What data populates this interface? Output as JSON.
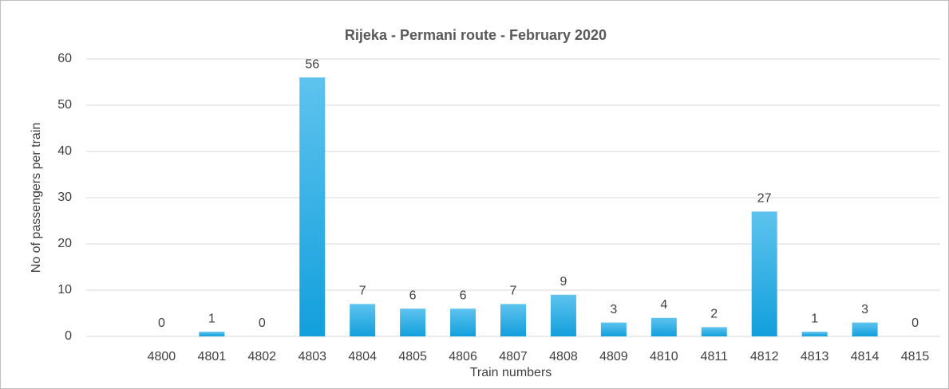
{
  "chart_data": {
    "type": "bar",
    "title": "Rijeka - Permani route - February 2020",
    "x_label": "Train numbers",
    "y_label": "No of passengers per train",
    "categories": [
      "4800",
      "4801",
      "4802",
      "4803",
      "4804",
      "4805",
      "4806",
      "4807",
      "4808",
      "4809",
      "4810",
      "4811",
      "4812",
      "4813",
      "4814",
      "4815"
    ],
    "values": [
      0,
      1,
      0,
      56,
      7,
      6,
      6,
      7,
      9,
      3,
      4,
      2,
      27,
      1,
      3,
      0
    ],
    "color": "#2aa9e0",
    "ylim": [
      0,
      60
    ],
    "yticks": [
      0,
      10,
      20,
      30,
      40,
      50,
      60
    ],
    "grid": true
  }
}
